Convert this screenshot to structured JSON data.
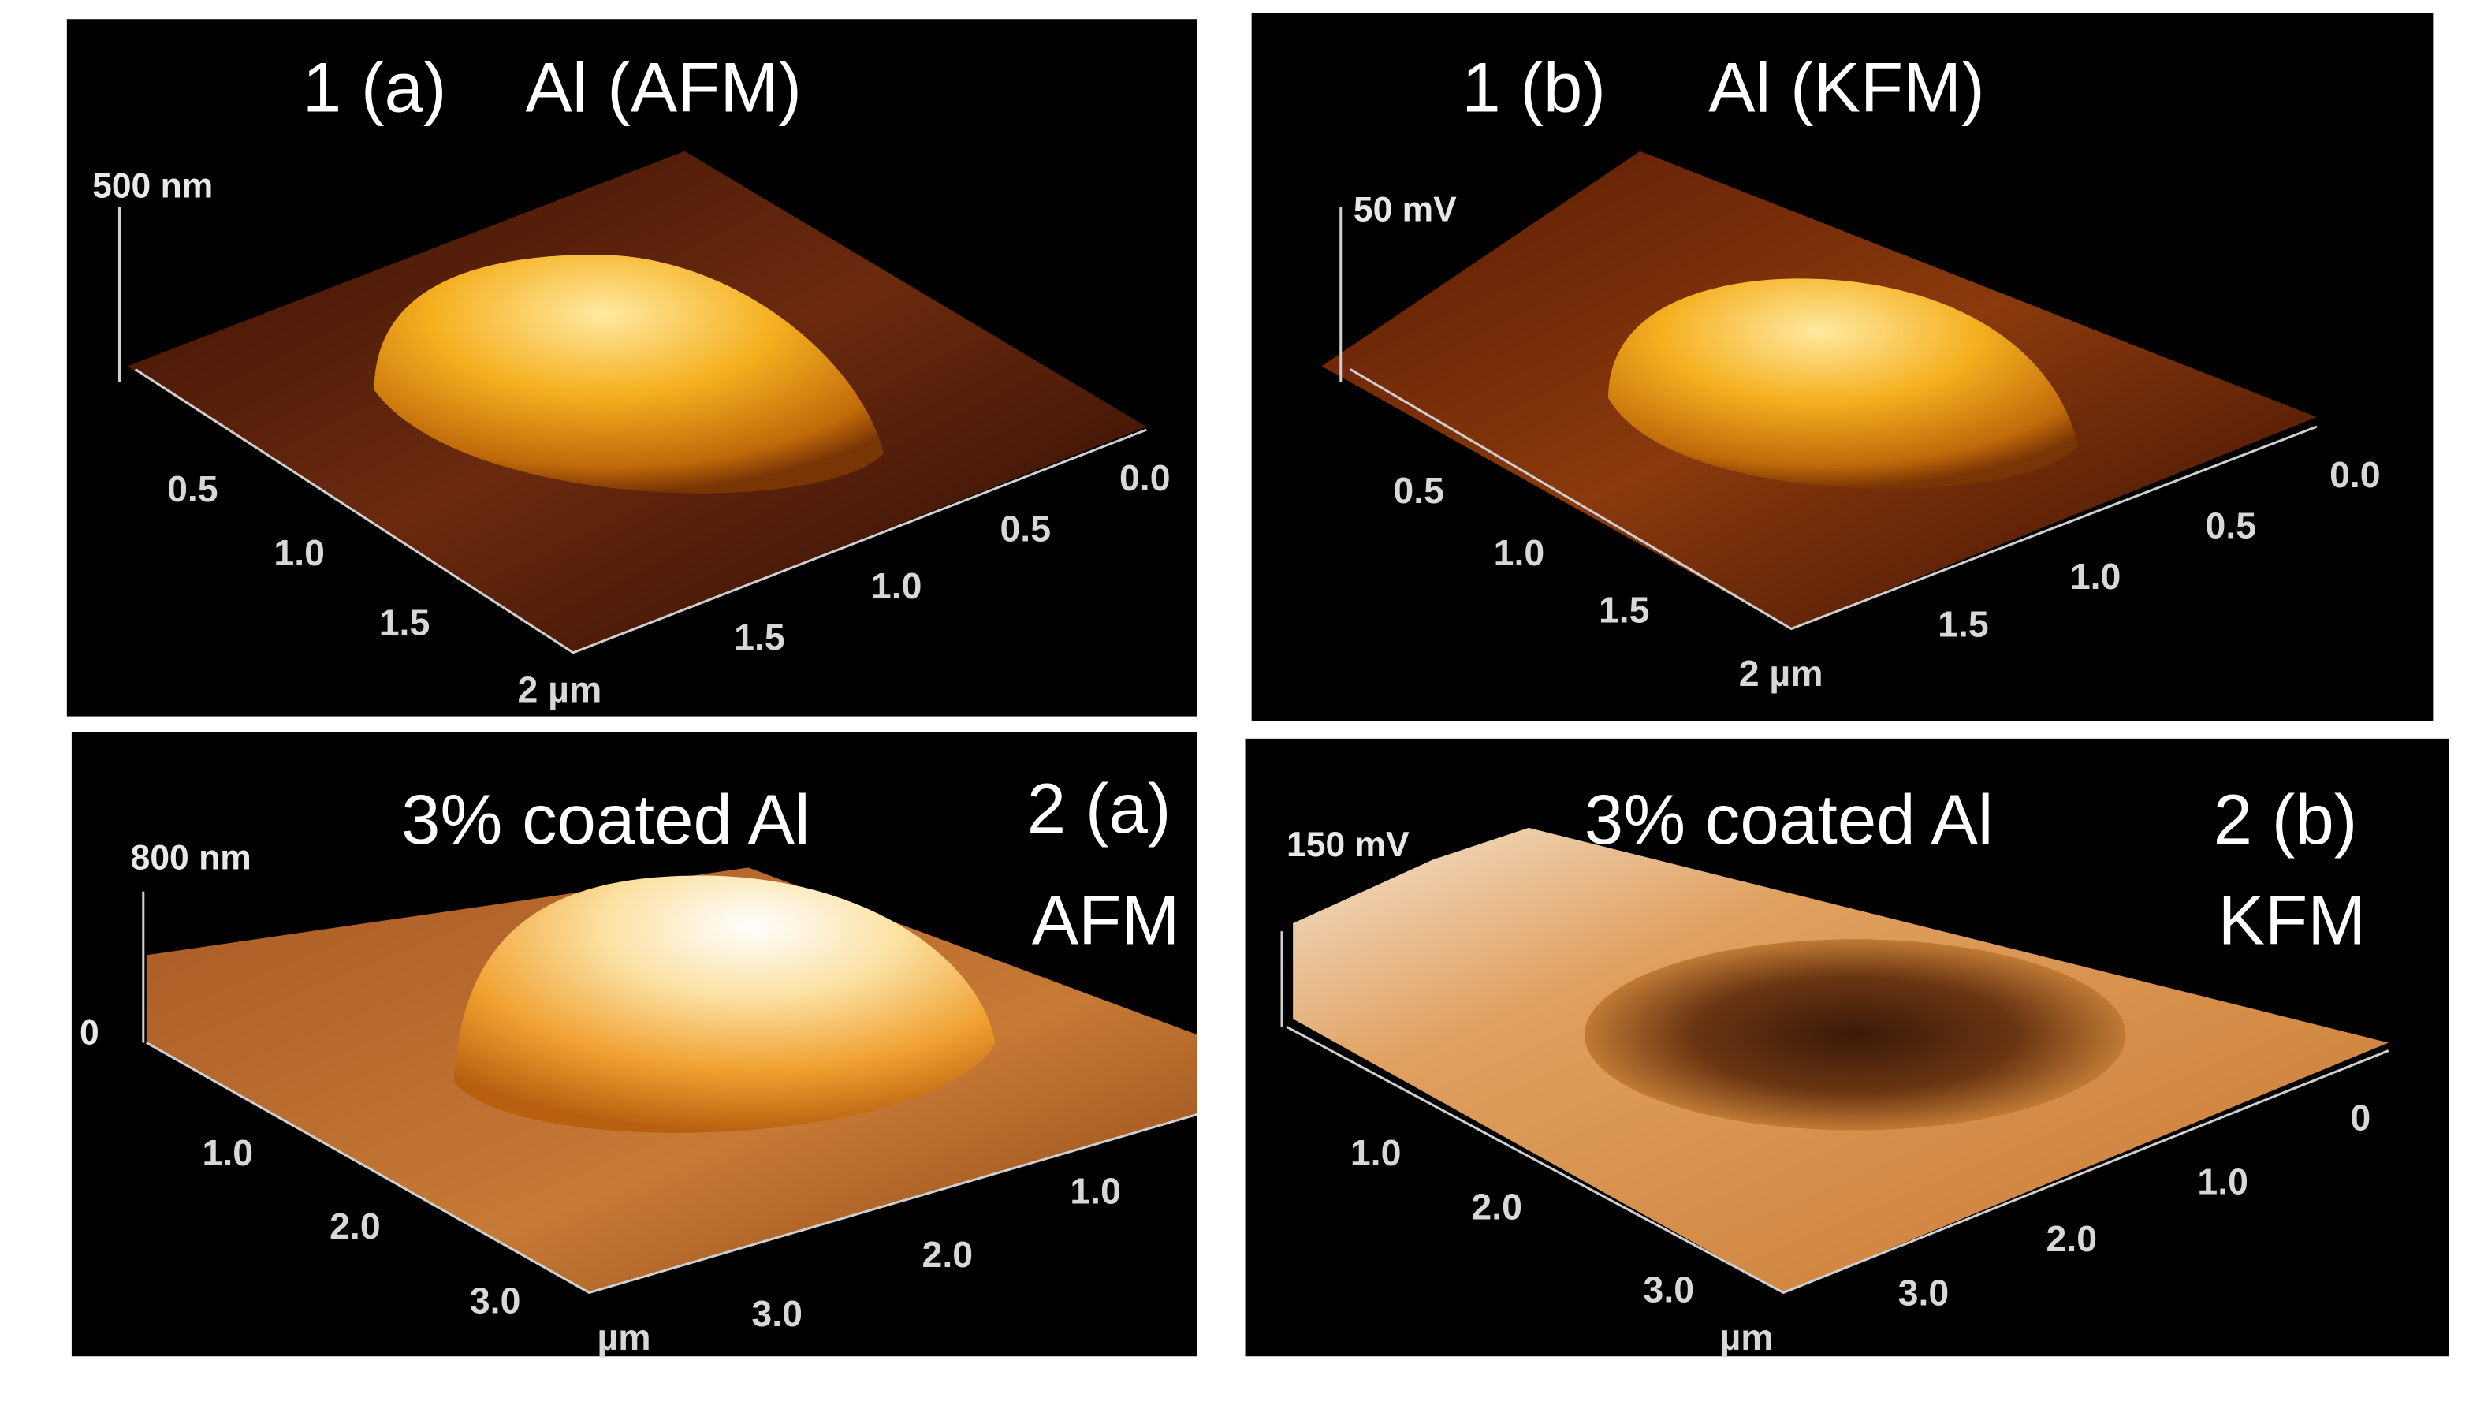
{
  "panels": [
    {
      "label": "1 (a)",
      "title": "Al (AFM)",
      "scale": "500 nm",
      "left_ticks": [
        "0.5",
        "1.0",
        "1.5",
        "2 µm"
      ],
      "right_ticks": [
        "0.0",
        "0.5",
        "1.0",
        "1.5"
      ]
    },
    {
      "label": "1 (b)",
      "title": "Al (KFM)",
      "scale": "50 mV",
      "left_ticks": [
        "0.5",
        "1.0",
        "1.5",
        "2 µm"
      ],
      "right_ticks": [
        "0.0",
        "0.5",
        "1.0",
        "1.5"
      ]
    },
    {
      "label": "2 (a)",
      "title": "3% coated Al",
      "mode": "AFM",
      "scale": "800 nm",
      "zero": "0",
      "left_ticks": [
        "1.0",
        "2.0",
        "3.0",
        "µm"
      ],
      "right_ticks": [
        "1.0",
        "2.0",
        "3.0"
      ]
    },
    {
      "label": "2 (b)",
      "title": "3% coated Al",
      "mode": "KFM",
      "scale": "150  mV",
      "left_ticks": [
        "1.0",
        "2.0",
        "3.0",
        "µm"
      ],
      "right_ticks": [
        "0",
        "1.0",
        "2.0",
        "3.0"
      ]
    }
  ]
}
